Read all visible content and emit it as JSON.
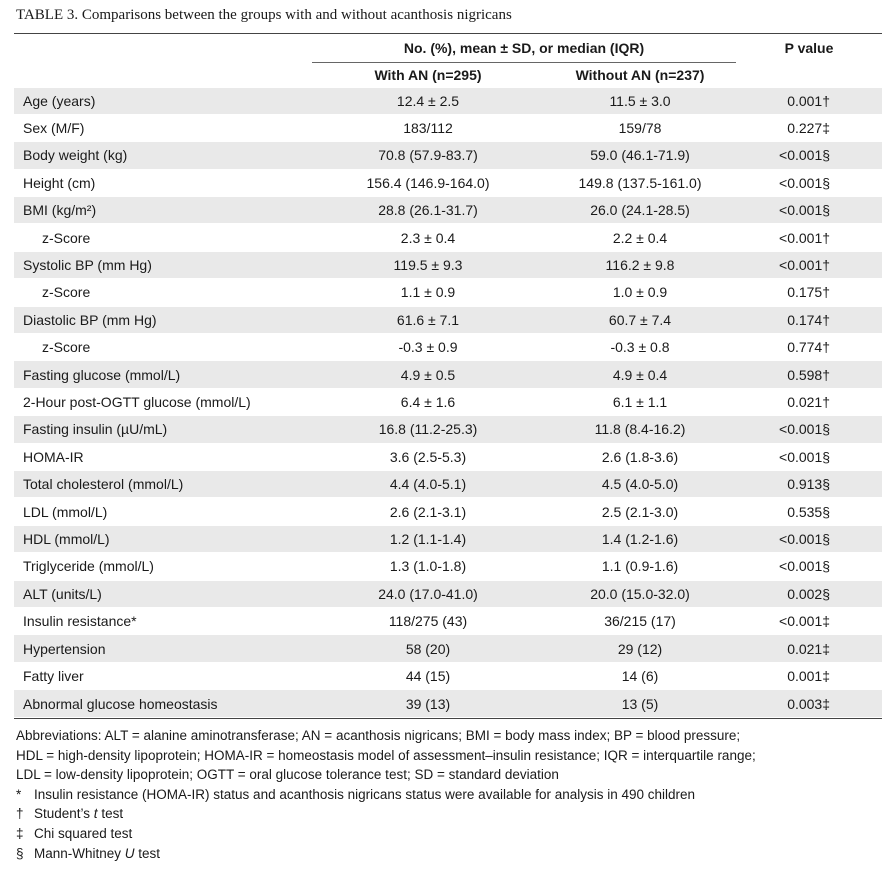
{
  "caption": "TABLE 3.  Comparisons between the groups with and without acanthosis nigricans",
  "header": {
    "group": "No. (%), mean ± SD, or median (IQR)",
    "p_value": "P value",
    "with_an": "With AN (n=295)",
    "without_an": "Without AN (n=237)"
  },
  "rows": [
    {
      "label": "Age (years)",
      "with_an": "12.4 ± 2.5",
      "without_an": "11.5 ± 3.0",
      "p": "0.001†"
    },
    {
      "label": "Sex (M/F)",
      "with_an": "183/112",
      "without_an": "159/78",
      "p": "0.227‡"
    },
    {
      "label": "Body weight (kg)",
      "with_an": "70.8 (57.9-83.7)",
      "without_an": "59.0 (46.1-71.9)",
      "p": "<0.001§"
    },
    {
      "label": "Height (cm)",
      "with_an": "156.4 (146.9-164.0)",
      "without_an": "149.8 (137.5-161.0)",
      "p": "<0.001§"
    },
    {
      "label": "BMI (kg/m²)",
      "with_an": "28.8 (26.1-31.7)",
      "without_an": "26.0 (24.1-28.5)",
      "p": "<0.001§"
    },
    {
      "label": "z-Score",
      "with_an": "2.3 ± 0.4",
      "without_an": "2.2 ± 0.4",
      "p": "<0.001†"
    },
    {
      "label": "Systolic BP (mm Hg)",
      "with_an": "119.5 ± 9.3",
      "without_an": "116.2 ± 9.8",
      "p": "<0.001†"
    },
    {
      "label": "z-Score",
      "with_an": "1.1 ± 0.9",
      "without_an": "1.0 ± 0.9",
      "p": "0.175†"
    },
    {
      "label": "Diastolic BP (mm Hg)",
      "with_an": "61.6 ± 7.1",
      "without_an": "60.7 ± 7.4",
      "p": "0.174†"
    },
    {
      "label": "z-Score",
      "with_an": "-0.3 ± 0.9",
      "without_an": "-0.3 ± 0.8",
      "p": "0.774†"
    },
    {
      "label": "Fasting glucose (mmol/L)",
      "with_an": "4.9 ± 0.5",
      "without_an": "4.9 ± 0.4",
      "p": "0.598†"
    },
    {
      "label": "2-Hour post-OGTT glucose (mmol/L)",
      "with_an": "6.4 ± 1.6",
      "without_an": "6.1 ± 1.1",
      "p": "0.021†"
    },
    {
      "label": "Fasting insulin (µU/mL)",
      "with_an": "16.8 (11.2-25.3)",
      "without_an": "11.8 (8.4-16.2)",
      "p": "<0.001§"
    },
    {
      "label": "HOMA-IR",
      "with_an": "3.6 (2.5-5.3)",
      "without_an": "2.6 (1.8-3.6)",
      "p": "<0.001§"
    },
    {
      "label": "Total cholesterol (mmol/L)",
      "with_an": "4.4 (4.0-5.1)",
      "without_an": "4.5 (4.0-5.0)",
      "p": "0.913§"
    },
    {
      "label": "LDL (mmol/L)",
      "with_an": "2.6 (2.1-3.1)",
      "without_an": "2.5 (2.1-3.0)",
      "p": "0.535§"
    },
    {
      "label": "HDL (mmol/L)",
      "with_an": "1.2 (1.1-1.4)",
      "without_an": "1.4 (1.2-1.6)",
      "p": "<0.001§"
    },
    {
      "label": "Triglyceride (mmol/L)",
      "with_an": "1.3 (1.0-1.8)",
      "without_an": "1.1 (0.9-1.6)",
      "p": "<0.001§"
    },
    {
      "label": "ALT (units/L)",
      "with_an": "24.0 (17.0-41.0)",
      "without_an": "20.0 (15.0-32.0)",
      "p": "0.002§"
    },
    {
      "label": "Insulin resistance*",
      "with_an": "118/275 (43)",
      "without_an": "36/215 (17)",
      "p": "<0.001‡"
    },
    {
      "label": "Hypertension",
      "with_an": "58 (20)",
      "without_an": "29 (12)",
      "p": "0.021‡"
    },
    {
      "label": "Fatty liver",
      "with_an": "44 (15)",
      "without_an": "14 (6)",
      "p": "0.001‡"
    },
    {
      "label": "Abnormal glucose homeostasis",
      "with_an": "39 (13)",
      "without_an": "13 (5)",
      "p": "0.003‡"
    }
  ],
  "notes": {
    "abbrev_1": "Abbreviations: ALT = alanine aminotransferase; AN = acanthosis nigricans; BMI = body mass index; BP = blood pressure;",
    "abbrev_2": "HDL = high-density lipoprotein; HOMA-IR = homeostasis model of assessment–insulin resistance; IQR = interquartile range;",
    "abbrev_3": "LDL = low-density lipoprotein; OGTT = oral glucose tolerance test; SD = standard deviation",
    "star_sym": "*",
    "star_text": "Insulin resistance (HOMA-IR) status and acanthosis nigricans status were available for analysis in 490 children",
    "dagger_sym": "†",
    "dagger_text_pre": "Student’s ",
    "dagger_text_it": "t",
    "dagger_text_post": " test",
    "ddagger_sym": "‡",
    "ddagger_text": "Chi squared test",
    "section_sym": "§",
    "section_text_pre": "Mann-Whitney ",
    "section_text_it": "U",
    "section_text_post": " test"
  }
}
